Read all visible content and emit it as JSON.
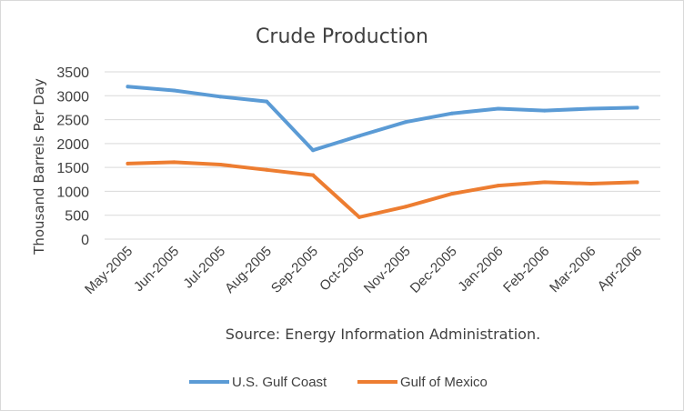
{
  "chart_data": {
    "type": "line",
    "title": "Crude Production",
    "xlabel": "Source: Energy Information Administration.",
    "ylabel": "Thousand Barrels Per Day",
    "categories": [
      "May-2005",
      "Jun-2005",
      "Jul-2005",
      "Aug-2005",
      "Sep-2005",
      "Oct-2005",
      "Nov-2005",
      "Dec-2005",
      "Jan-2006",
      "Feb-2006",
      "Mar-2006",
      "Apr-2006"
    ],
    "ylim": [
      0,
      3500
    ],
    "yticks": [
      0,
      500,
      1000,
      1500,
      2000,
      2500,
      3000,
      3500
    ],
    "grid": true,
    "legend_position": "bottom",
    "series": [
      {
        "name": "U.S. Gulf Coast",
        "color": "#5b9bd5",
        "values": [
          3190,
          3110,
          2980,
          2880,
          1860,
          2160,
          2450,
          2630,
          2730,
          2690,
          2730,
          2750
        ]
      },
      {
        "name": "Gulf of Mexico",
        "color": "#ed7d31",
        "values": [
          1580,
          1610,
          1560,
          1450,
          1340,
          460,
          680,
          950,
          1120,
          1190,
          1160,
          1190
        ]
      }
    ]
  }
}
